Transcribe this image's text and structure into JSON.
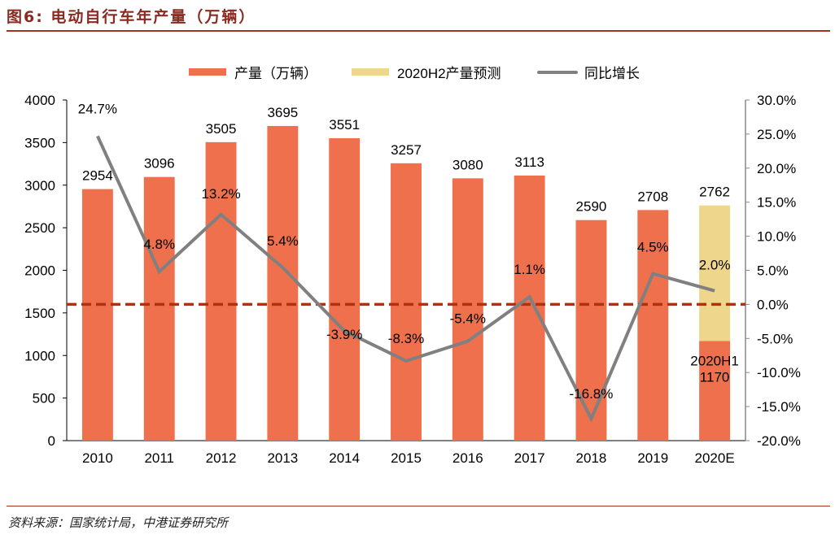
{
  "header": {
    "title": "图6:  电动自行车年产量（万辆）"
  },
  "footer": {
    "source": "资料来源：国家统计局，中港证券研究所"
  },
  "chart_data": {
    "type": "bar",
    "title": "电动自行车年产量（万辆）",
    "categories": [
      "2010",
      "2011",
      "2012",
      "2013",
      "2014",
      "2015",
      "2016",
      "2017",
      "2018",
      "2019",
      "2020E"
    ],
    "series": [
      {
        "name": "产量（万辆）",
        "type": "bar",
        "color": "#ee704d",
        "values": [
          2954,
          3096,
          3505,
          3695,
          3551,
          3257,
          3080,
          3113,
          2590,
          2708,
          1170
        ]
      },
      {
        "name": "2020H2产量预测",
        "type": "bar-stacked",
        "color": "#efd68d",
        "values": [
          null,
          null,
          null,
          null,
          null,
          null,
          null,
          null,
          null,
          null,
          1592
        ]
      },
      {
        "name": "同比增长",
        "type": "line",
        "axis": "right",
        "color": "#808080",
        "values": [
          24.7,
          4.8,
          13.2,
          5.4,
          -3.9,
          -8.3,
          -5.4,
          1.1,
          -16.8,
          4.5,
          2.0
        ]
      }
    ],
    "bar_labels": [
      "2954",
      "3096",
      "3505",
      "3695",
      "3551",
      "3257",
      "3080",
      "3113",
      "2590",
      "2708",
      "2762"
    ],
    "line_labels": [
      "24.7%",
      "4.8%",
      "13.2%",
      "5.4%",
      "-3.9%",
      "-8.3%",
      "-5.4%",
      "1.1%",
      "-16.8%",
      "4.5%",
      "2.0%"
    ],
    "annotation": {
      "line1": "2020H1",
      "line2": "1170"
    },
    "reference_line": {
      "axis": "right",
      "value": 0,
      "style": "dashed",
      "color": "#b3300f"
    },
    "left_axis": {
      "ylim": [
        0,
        4000
      ],
      "ticks": [
        "0",
        "500",
        "1000",
        "1500",
        "2000",
        "2500",
        "3000",
        "3500",
        "4000"
      ]
    },
    "right_axis": {
      "ylim": [
        -20,
        30
      ],
      "ticks": [
        "-20.0%",
        "-15.0%",
        "-10.0%",
        "-5.0%",
        "0.0%",
        "5.0%",
        "10.0%",
        "15.0%",
        "20.0%",
        "25.0%",
        "30.0%"
      ]
    },
    "legend": {
      "position": "top",
      "items": [
        "产量（万辆）",
        "2020H2产量预测",
        "同比增长"
      ]
    },
    "grid": false
  }
}
